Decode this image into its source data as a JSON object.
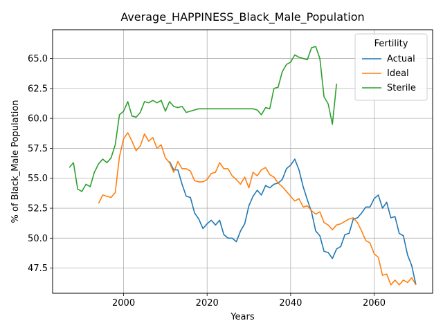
{
  "chart_data": {
    "type": "line",
    "title": "Average_HAPPINESS_Black_Male_Population",
    "xlabel": "Years",
    "ylabel": "% of Black_Male Population",
    "xlim": [
      1983,
      2074
    ],
    "ylim": [
      45.4,
      67.4
    ],
    "xticks": [
      2000,
      2020,
      2040,
      2060
    ],
    "yticks": [
      47.5,
      50.0,
      52.5,
      55.0,
      57.5,
      60.0,
      62.5,
      65.0
    ],
    "grid": true,
    "legend": {
      "title": "Fertility",
      "placement": "top-right"
    },
    "series": [
      {
        "name": "Actual",
        "color": "#1f77b4",
        "x": [
          2011,
          2012,
          2013,
          2014,
          2015,
          2016,
          2017,
          2018,
          2019,
          2020,
          2021,
          2022,
          2023,
          2024,
          2025,
          2026,
          2027,
          2028,
          2029,
          2030,
          2031,
          2032,
          2033,
          2034,
          2035,
          2036,
          2037,
          2038,
          2039,
          2040,
          2041,
          2042,
          2043,
          2044,
          2045,
          2046,
          2047,
          2048,
          2049,
          2050,
          2051,
          2052,
          2053,
          2054,
          2055,
          2056,
          2057,
          2058,
          2059,
          2060,
          2061,
          2062,
          2063,
          2064,
          2065,
          2066,
          2067,
          2068,
          2069,
          2070
        ],
        "y": [
          56.4,
          55.7,
          55.7,
          54.5,
          53.5,
          53.4,
          52.1,
          51.6,
          50.8,
          51.2,
          51.5,
          51.1,
          51.5,
          50.3,
          50.0,
          50.0,
          49.7,
          50.6,
          51.2,
          52.7,
          53.5,
          54.0,
          53.6,
          54.4,
          54.2,
          54.5,
          54.6,
          54.9,
          55.8,
          56.1,
          56.6,
          55.7,
          54.3,
          53.2,
          52.2,
          50.6,
          50.2,
          48.9,
          48.8,
          48.3,
          49.1,
          49.3,
          50.3,
          50.4,
          51.6,
          51.7,
          52.1,
          52.6,
          52.6,
          53.3,
          53.6,
          52.5,
          53.0,
          51.7,
          51.8,
          50.4,
          50.2,
          48.6,
          47.7,
          46.1
        ]
      },
      {
        "name": "Ideal",
        "color": "#ff7f0e",
        "x": [
          1994,
          1995,
          1996,
          1997,
          1998,
          1999,
          2000,
          2001,
          2002,
          2003,
          2004,
          2005,
          2006,
          2007,
          2008,
          2009,
          2010,
          2011,
          2012,
          2013,
          2014,
          2015,
          2016,
          2017,
          2018,
          2019,
          2020,
          2021,
          2022,
          2023,
          2024,
          2025,
          2026,
          2027,
          2028,
          2029,
          2030,
          2031,
          2032,
          2033,
          2034,
          2035,
          2036,
          2037,
          2038,
          2039,
          2040,
          2041,
          2042,
          2043,
          2044,
          2045,
          2046,
          2047,
          2048,
          2049,
          2050,
          2051,
          2052,
          2053,
          2054,
          2055,
          2056,
          2057,
          2058,
          2059,
          2060,
          2061,
          2062,
          2063,
          2064,
          2065,
          2066,
          2067,
          2068,
          2069,
          2070
        ],
        "y": [
          52.9,
          53.6,
          53.5,
          53.4,
          53.8,
          56.8,
          58.3,
          58.8,
          58.1,
          57.3,
          57.7,
          58.7,
          58.1,
          58.4,
          57.5,
          57.8,
          56.7,
          56.3,
          55.5,
          56.4,
          55.8,
          55.8,
          55.6,
          54.8,
          54.7,
          54.7,
          54.9,
          55.4,
          55.5,
          56.3,
          55.8,
          55.8,
          55.2,
          54.9,
          54.5,
          55.1,
          54.2,
          55.5,
          55.2,
          55.7,
          55.9,
          55.3,
          55.1,
          54.6,
          54.3,
          53.9,
          53.5,
          53.1,
          53.3,
          52.6,
          52.7,
          52.3,
          52.0,
          52.2,
          51.3,
          51.1,
          50.7,
          51.1,
          51.2,
          51.4,
          51.6,
          51.7,
          51.3,
          50.6,
          49.8,
          49.6,
          48.7,
          48.4,
          46.9,
          47.0,
          46.1,
          46.5,
          46.1,
          46.5,
          46.3,
          46.7,
          46.1
        ]
      },
      {
        "name": "Sterile",
        "color": "#2ca02c",
        "x": [
          1987,
          1988,
          1989,
          1990,
          1991,
          1992,
          1993,
          1994,
          1995,
          1996,
          1997,
          1998,
          1999,
          2000,
          2001,
          2002,
          2003,
          2004,
          2005,
          2006,
          2007,
          2008,
          2009,
          2010,
          2011,
          2012,
          2013,
          2014,
          2015,
          2016,
          2017,
          2018,
          2019,
          2020,
          2021,
          2022,
          2023,
          2024,
          2025,
          2026,
          2027,
          2028,
          2029,
          2030,
          2031,
          2032,
          2033,
          2034,
          2035,
          2036,
          2037,
          2038,
          2039,
          2040,
          2041,
          2042,
          2043,
          2044,
          2045,
          2046,
          2047,
          2048,
          2049,
          2050,
          2051
        ],
        "y": [
          55.9,
          56.3,
          54.1,
          53.9,
          54.5,
          54.3,
          55.5,
          56.2,
          56.6,
          56.3,
          56.7,
          57.8,
          60.3,
          60.6,
          61.4,
          60.2,
          60.1,
          60.5,
          61.4,
          61.3,
          61.5,
          61.3,
          61.5,
          60.6,
          61.4,
          61.0,
          60.9,
          61.0,
          60.5,
          60.6,
          60.7,
          60.8,
          60.8,
          60.8,
          60.8,
          60.8,
          60.8,
          60.8,
          60.8,
          60.8,
          60.8,
          60.8,
          60.8,
          60.8,
          60.8,
          60.7,
          60.3,
          60.9,
          60.8,
          62.5,
          62.6,
          63.9,
          64.5,
          64.7,
          65.3,
          65.1,
          65.0,
          64.9,
          65.9,
          66.0,
          65.0,
          61.8,
          61.2,
          59.5,
          62.9
        ]
      }
    ]
  }
}
